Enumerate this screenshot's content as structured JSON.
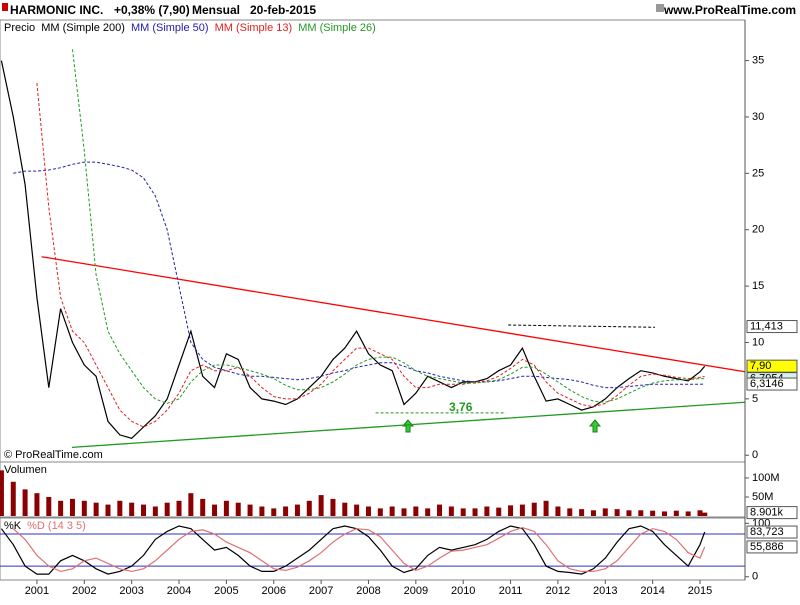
{
  "header": {
    "symbol": "HARMONIC INC.",
    "change": "+0,38% (7,90)",
    "period": "Mensual",
    "date": "20-feb-2015",
    "site": "www.ProRealTime.com",
    "copyright": "© ProRealTime.com"
  },
  "chart_data": [
    {
      "type": "line",
      "x": [
        2000.25,
        2000.5,
        2000.75,
        2001,
        2001.25,
        2001.5,
        2001.75,
        2002,
        2002.25,
        2002.5,
        2002.75,
        2003,
        2003.25,
        2003.5,
        2003.75,
        2004,
        2004.25,
        2004.5,
        2004.75,
        2005,
        2005.25,
        2005.5,
        2005.75,
        2006,
        2006.25,
        2006.5,
        2006.75,
        2007,
        2007.25,
        2007.5,
        2007.75,
        2008,
        2008.25,
        2008.5,
        2008.75,
        2009,
        2009.25,
        2009.5,
        2009.75,
        2010,
        2010.25,
        2010.5,
        2010.75,
        2011,
        2011.25,
        2011.5,
        2011.75,
        2012,
        2012.25,
        2012.5,
        2012.75,
        2013,
        2013.25,
        2013.5,
        2013.75,
        2014,
        2014.25,
        2014.5,
        2014.75,
        2015,
        2015.1
      ],
      "series": [
        {
          "name": "Precio",
          "color": "#000000",
          "style": "solid",
          "values": [
            35,
            30,
            24,
            14,
            6,
            13,
            10,
            8,
            7,
            3,
            1.8,
            1.5,
            2.5,
            3.5,
            5,
            8,
            11,
            7,
            6,
            9,
            8.5,
            6,
            5,
            4.8,
            4.5,
            5,
            6,
            7,
            8.5,
            9.5,
            11,
            9,
            8,
            7.5,
            4.5,
            5.5,
            7,
            6.5,
            6,
            6.5,
            6.5,
            6.8,
            7.5,
            8,
            9.5,
            7,
            4.8,
            5,
            4.5,
            4,
            4.3,
            5,
            6,
            6.8,
            7.5,
            7.3,
            7,
            6.8,
            6.6,
            7.4,
            7.9
          ]
        },
        {
          "name": "MM (Simple 200)",
          "color": "#000000",
          "style": "dashed",
          "values": [
            null,
            null,
            null,
            null,
            null,
            null,
            null,
            null,
            null,
            null,
            null,
            null,
            null,
            null,
            null,
            null,
            null,
            null,
            null,
            null,
            null,
            null,
            null,
            null,
            null,
            null,
            null,
            null,
            null,
            null,
            null,
            null,
            null,
            null,
            null,
            null,
            null,
            null,
            null,
            null,
            null,
            null,
            null,
            null,
            null,
            null,
            null,
            null,
            null,
            null,
            null,
            null,
            null,
            null,
            null,
            null,
            null,
            null,
            null,
            null,
            null
          ]
        },
        {
          "name": "MM (Simple 50)",
          "color": "#2020b0",
          "style": "dashed",
          "values": [
            null,
            25,
            25.2,
            25.2,
            25.3,
            25.5,
            25.8,
            26,
            26,
            25.8,
            25.6,
            25.3,
            24.6,
            23,
            20,
            15,
            10,
            8.5,
            7.8,
            7.5,
            7.2,
            7,
            7,
            6.9,
            6.8,
            6.7,
            6.8,
            7,
            7.3,
            7.5,
            7.8,
            8,
            8.2,
            8.2,
            7.9,
            7.5,
            7.3,
            7,
            6.8,
            6.6,
            6.5,
            6.5,
            6.6,
            6.8,
            7,
            7,
            6.9,
            6.8,
            6.7,
            6.5,
            6.2,
            6,
            6,
            6.1,
            6.2,
            6.3,
            6.3,
            6.3,
            6.3,
            6.3,
            6.3146
          ]
        },
        {
          "name": "MM (Simple 13)",
          "color": "#e02020",
          "style": "dashed",
          "values": [
            null,
            null,
            null,
            33,
            22,
            14,
            11,
            10,
            8,
            6,
            4,
            3,
            2.5,
            3,
            4,
            5.5,
            7.5,
            8,
            7.5,
            7.5,
            7.8,
            7,
            6,
            5.2,
            5,
            5,
            5.5,
            6.3,
            7.5,
            8.5,
            9.5,
            9.5,
            9,
            8.5,
            7,
            6,
            6,
            6.3,
            6.3,
            6.3,
            6.5,
            6.6,
            7,
            7.7,
            8.5,
            8,
            6.5,
            5.5,
            5,
            4.5,
            4.3,
            4.6,
            5.3,
            6.2,
            7,
            7.2,
            7.1,
            6.9,
            6.8,
            6.9,
            7.0
          ]
        },
        {
          "name": "MM (Simple 26)",
          "color": "#229922",
          "style": "dashed",
          "values": [
            null,
            null,
            null,
            null,
            null,
            null,
            36,
            27,
            16,
            11,
            9,
            7.5,
            6,
            5,
            4.6,
            5,
            6.5,
            7.5,
            8,
            8,
            7.8,
            7.5,
            7.2,
            6.8,
            6.2,
            5.8,
            5.8,
            6,
            6.5,
            7.2,
            8,
            8.5,
            8.7,
            8.7,
            8.2,
            7.5,
            7,
            6.8,
            6.6,
            6.4,
            6.4,
            6.5,
            6.7,
            7.2,
            7.8,
            7.8,
            7.2,
            6.5,
            5.8,
            5.2,
            4.8,
            4.7,
            5,
            5.5,
            6,
            6.4,
            6.6,
            6.7,
            6.7,
            6.8,
            6.7954
          ]
        }
      ],
      "xlim": [
        2000.22,
        2015.95
      ],
      "ylim": [
        -0.6,
        38.6
      ],
      "yticks": [
        0,
        5,
        10,
        15,
        20,
        25,
        30,
        35
      ],
      "trendlines": [
        {
          "x": [
            2001.1,
            2015.95
          ],
          "values": [
            17.6,
            7.4
          ],
          "color": "#ff0000",
          "style": "solid"
        },
        {
          "x": [
            2001.74,
            2015.95
          ],
          "values": [
            0.7,
            4.7
          ],
          "color": "#229922",
          "style": "solid"
        },
        {
          "x": [
            2008.15,
            2010.9
          ],
          "values": [
            3.76,
            3.76
          ],
          "color": "#229922",
          "style": "dashed",
          "label": "3,76"
        },
        {
          "x": [
            2010.95,
            2014.05
          ],
          "values": [
            11.55,
            11.35
          ],
          "color": "#000000",
          "style": "dashed"
        }
      ],
      "markers": [
        {
          "value": 11.413,
          "label": "11,413",
          "color": "#ffffff"
        },
        {
          "value": 7.9,
          "label": "7,90",
          "color": "#ffff00"
        },
        {
          "value": 6.7954,
          "label": "6,7954",
          "color": "#d8f0e8"
        },
        {
          "value": 6.3146,
          "label": "6,3146",
          "color": "#ffffff"
        }
      ]
    },
    {
      "type": "bar",
      "title": "Volumen",
      "color": "#8b0000",
      "x": [
        2000.25,
        2000.5,
        2000.75,
        2001,
        2001.25,
        2001.5,
        2001.75,
        2002,
        2002.25,
        2002.5,
        2002.75,
        2003,
        2003.25,
        2003.5,
        2003.75,
        2004,
        2004.25,
        2004.5,
        2004.75,
        2005,
        2005.25,
        2005.5,
        2005.75,
        2006,
        2006.25,
        2006.5,
        2006.75,
        2007,
        2007.25,
        2007.5,
        2007.75,
        2008,
        2008.25,
        2008.5,
        2008.75,
        2009,
        2009.25,
        2009.5,
        2009.75,
        2010,
        2010.25,
        2010.5,
        2010.75,
        2011,
        2011.25,
        2011.5,
        2011.75,
        2012,
        2012.25,
        2012.5,
        2012.75,
        2013,
        2013.25,
        2013.5,
        2013.75,
        2014,
        2014.25,
        2014.5,
        2014.75,
        2015,
        2015.1
      ],
      "values": [
        120000000,
        90000000,
        70000000,
        60000000,
        50000000,
        40000000,
        45000000,
        40000000,
        35000000,
        30000000,
        40000000,
        35000000,
        30000000,
        25000000,
        35000000,
        40000000,
        60000000,
        45000000,
        30000000,
        40000000,
        35000000,
        30000000,
        25000000,
        20000000,
        25000000,
        30000000,
        40000000,
        55000000,
        45000000,
        35000000,
        30000000,
        25000000,
        20000000,
        25000000,
        20000000,
        25000000,
        20000000,
        30000000,
        25000000,
        20000000,
        20000000,
        25000000,
        22000000,
        28000000,
        30000000,
        35000000,
        40000000,
        25000000,
        20000000,
        18000000,
        15000000,
        20000000,
        18000000,
        15000000,
        15000000,
        14000000,
        12000000,
        14000000,
        12000000,
        15000000,
        8901000
      ],
      "xlim": [
        2000.22,
        2015.95
      ],
      "ylim": [
        0,
        142000000
      ],
      "yticks": [
        {
          "value": 50000000,
          "label": "50M"
        },
        {
          "value": 100000000,
          "label": "100M"
        }
      ],
      "markers": [
        {
          "value": 8901000,
          "label": "8.901k",
          "color": "#ffffff"
        }
      ]
    },
    {
      "type": "line",
      "x": [
        2000.25,
        2000.5,
        2000.75,
        2001,
        2001.25,
        2001.5,
        2001.75,
        2002,
        2002.25,
        2002.5,
        2002.75,
        2003,
        2003.25,
        2003.5,
        2003.75,
        2004,
        2004.25,
        2004.5,
        2004.75,
        2005,
        2005.25,
        2005.5,
        2005.75,
        2006,
        2006.25,
        2006.5,
        2006.75,
        2007,
        2007.25,
        2007.5,
        2007.75,
        2008,
        2008.25,
        2008.5,
        2008.75,
        2009,
        2009.25,
        2009.5,
        2009.75,
        2010,
        2010.25,
        2010.5,
        2010.75,
        2011,
        2011.25,
        2011.5,
        2011.75,
        2012,
        2012.25,
        2012.5,
        2012.75,
        2013,
        2013.25,
        2013.5,
        2013.75,
        2014,
        2014.25,
        2014.5,
        2014.75,
        2015,
        2015.1
      ],
      "series": [
        {
          "name": "%K",
          "color": "#000000",
          "style": "solid",
          "values": [
            90,
            60,
            20,
            5,
            5,
            30,
            40,
            30,
            15,
            5,
            10,
            20,
            40,
            70,
            85,
            95,
            90,
            70,
            50,
            55,
            40,
            20,
            10,
            10,
            20,
            35,
            50,
            70,
            90,
            95,
            90,
            75,
            50,
            20,
            8,
            15,
            40,
            55,
            50,
            55,
            60,
            70,
            85,
            95,
            90,
            60,
            20,
            10,
            8,
            5,
            15,
            35,
            65,
            90,
            95,
            85,
            60,
            40,
            20,
            60,
            83.723
          ]
        },
        {
          "name": "%D (14 3 5)",
          "color": "#e07070",
          "style": "solid",
          "values": [
            null,
            90,
            70,
            40,
            20,
            10,
            15,
            30,
            35,
            25,
            15,
            10,
            15,
            30,
            50,
            70,
            85,
            88,
            80,
            65,
            55,
            45,
            30,
            15,
            12,
            18,
            30,
            45,
            65,
            80,
            90,
            88,
            75,
            50,
            25,
            12,
            20,
            35,
            48,
            50,
            55,
            60,
            72,
            85,
            92,
            85,
            60,
            30,
            15,
            10,
            10,
            15,
            30,
            55,
            80,
            90,
            85,
            70,
            45,
            35,
            55.886
          ]
        }
      ],
      "xlim": [
        2000.22,
        2015.95
      ],
      "ylim": [
        -6,
        110
      ],
      "yticks": [
        0,
        100
      ],
      "levels": [
        20,
        80
      ],
      "xticks": [
        2001,
        2002,
        2003,
        2004,
        2005,
        2006,
        2007,
        2008,
        2009,
        2010,
        2011,
        2012,
        2013,
        2014,
        2015
      ],
      "markers": [
        {
          "value": 83.723,
          "label": "83,723",
          "color": "#ffffff"
        },
        {
          "value": 55.886,
          "label": "55,886",
          "color": "#ffffff"
        }
      ]
    }
  ]
}
